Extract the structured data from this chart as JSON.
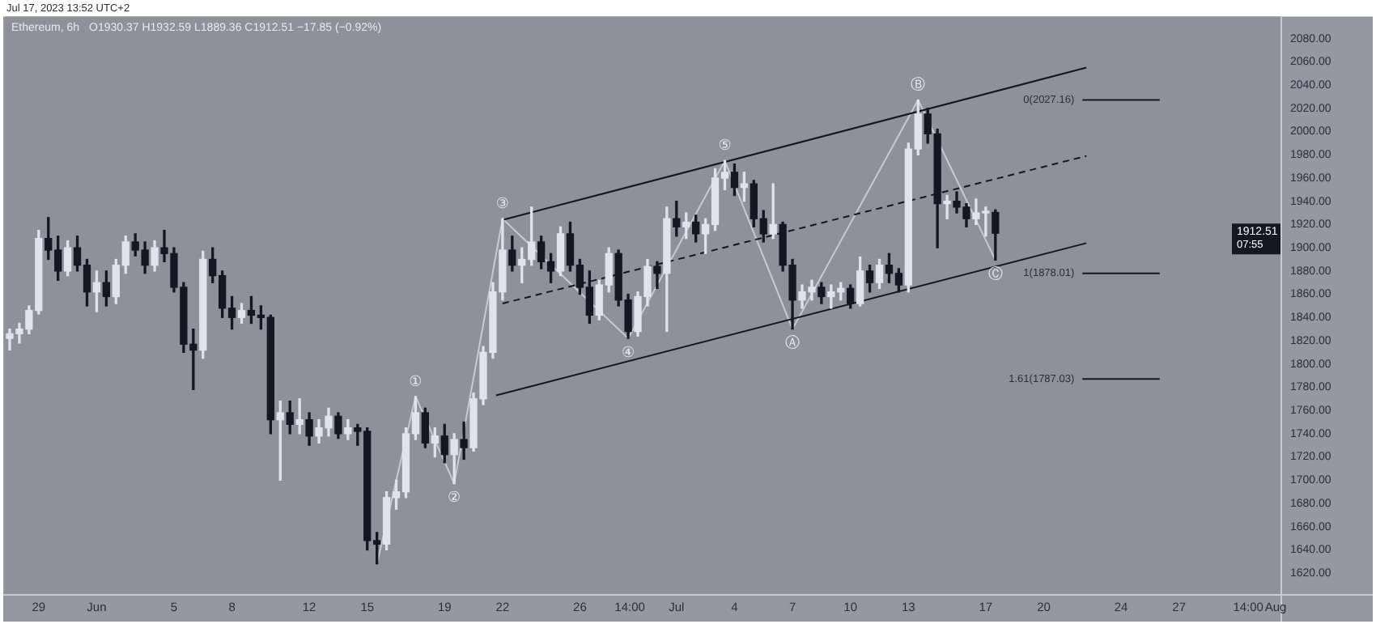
{
  "chart_data": {
    "type": "candlestick",
    "title": "Ethereum, 6h",
    "subtitle": "O1930.37 H1932.59 L1889.36 C1912.51 −17.85 (−0.92%)",
    "x": [
      "2023-05-27T12:00",
      "2023-05-28T00:00",
      "2023-05-28T12:00",
      "2023-05-29T00:00",
      "2023-05-29T12:00",
      "2023-05-30T00:00",
      "2023-05-30T12:00",
      "2023-05-31T00:00",
      "2023-05-31T12:00",
      "2023-06-01T00:00",
      "2023-06-01T12:00",
      "2023-06-02T00:00",
      "2023-06-02T12:00",
      "2023-06-03T00:00",
      "2023-06-03T12:00",
      "2023-06-04T00:00",
      "2023-06-04T12:00",
      "2023-06-05T00:00",
      "2023-06-05T12:00",
      "2023-06-06T00:00",
      "2023-06-06T12:00",
      "2023-06-07T00:00",
      "2023-06-07T12:00",
      "2023-06-08T00:00",
      "2023-06-08T12:00",
      "2023-06-09T00:00",
      "2023-06-09T12:00",
      "2023-06-10T00:00",
      "2023-06-10T12:00",
      "2023-06-11T00:00",
      "2023-06-11T12:00",
      "2023-06-12T00:00",
      "2023-06-12T12:00",
      "2023-06-13T00:00",
      "2023-06-13T12:00",
      "2023-06-14T00:00",
      "2023-06-14T12:00",
      "2023-06-15T00:00",
      "2023-06-15T12:00",
      "2023-06-16T00:00",
      "2023-06-16T12:00",
      "2023-06-17T00:00",
      "2023-06-17T12:00",
      "2023-06-18T00:00",
      "2023-06-18T12:00",
      "2023-06-19T00:00",
      "2023-06-19T12:00",
      "2023-06-20T00:00",
      "2023-06-20T12:00",
      "2023-06-21T00:00",
      "2023-06-21T12:00",
      "2023-06-22T00:00",
      "2023-06-22T12:00",
      "2023-06-23T00:00",
      "2023-06-23T12:00",
      "2023-06-24T00:00",
      "2023-06-24T12:00",
      "2023-06-25T00:00",
      "2023-06-25T12:00",
      "2023-06-26T00:00",
      "2023-06-26T12:00",
      "2023-06-27T00:00",
      "2023-06-27T12:00",
      "2023-06-28T00:00",
      "2023-06-28T12:00",
      "2023-06-29T00:00",
      "2023-06-29T12:00",
      "2023-06-30T00:00",
      "2023-06-30T12:00",
      "2023-07-01T00:00",
      "2023-07-01T12:00",
      "2023-07-02T00:00",
      "2023-07-02T12:00",
      "2023-07-03T00:00",
      "2023-07-03T12:00",
      "2023-07-04T00:00",
      "2023-07-04T12:00",
      "2023-07-05T00:00",
      "2023-07-05T12:00",
      "2023-07-06T00:00",
      "2023-07-06T12:00",
      "2023-07-07T00:00",
      "2023-07-07T12:00",
      "2023-07-08T00:00",
      "2023-07-08T12:00",
      "2023-07-09T00:00",
      "2023-07-09T12:00",
      "2023-07-10T00:00",
      "2023-07-10T12:00",
      "2023-07-11T00:00",
      "2023-07-11T12:00",
      "2023-07-12T00:00",
      "2023-07-12T12:00",
      "2023-07-13T00:00",
      "2023-07-13T12:00",
      "2023-07-14T00:00",
      "2023-07-14T12:00",
      "2023-07-15T00:00",
      "2023-07-15T12:00",
      "2023-07-16T00:00",
      "2023-07-16T12:00",
      "2023-07-17T00:00",
      "2023-07-17T12:00"
    ],
    "ohlc": [
      [
        1822,
        1830,
        1812,
        1826
      ],
      [
        1826,
        1835,
        1818,
        1830
      ],
      [
        1830,
        1850,
        1826,
        1846
      ],
      [
        1846,
        1915,
        1843,
        1908
      ],
      [
        1908,
        1926,
        1890,
        1898
      ],
      [
        1898,
        1910,
        1872,
        1880
      ],
      [
        1880,
        1906,
        1876,
        1900
      ],
      [
        1900,
        1910,
        1880,
        1885
      ],
      [
        1885,
        1890,
        1850,
        1862
      ],
      [
        1862,
        1880,
        1845,
        1870
      ],
      [
        1870,
        1880,
        1850,
        1858
      ],
      [
        1858,
        1890,
        1852,
        1885
      ],
      [
        1885,
        1910,
        1878,
        1905
      ],
      [
        1905,
        1912,
        1893,
        1898
      ],
      [
        1898,
        1905,
        1878,
        1885
      ],
      [
        1885,
        1906,
        1880,
        1900
      ],
      [
        1900,
        1915,
        1888,
        1895
      ],
      [
        1895,
        1900,
        1862,
        1866
      ],
      [
        1866,
        1870,
        1810,
        1817
      ],
      [
        1817,
        1830,
        1778,
        1812
      ],
      [
        1812,
        1897,
        1805,
        1890
      ],
      [
        1890,
        1900,
        1870,
        1876
      ],
      [
        1876,
        1880,
        1840,
        1848
      ],
      [
        1848,
        1858,
        1830,
        1840
      ],
      [
        1840,
        1852,
        1835,
        1846
      ],
      [
        1846,
        1858,
        1835,
        1842
      ],
      [
        1842,
        1850,
        1830,
        1840
      ],
      [
        1840,
        1842,
        1740,
        1752
      ],
      [
        1752,
        1768,
        1700,
        1758
      ],
      [
        1758,
        1768,
        1740,
        1748
      ],
      [
        1748,
        1770,
        1740,
        1752
      ],
      [
        1752,
        1758,
        1730,
        1738
      ],
      [
        1738,
        1752,
        1732,
        1745
      ],
      [
        1745,
        1762,
        1738,
        1755
      ],
      [
        1755,
        1758,
        1736,
        1740
      ],
      [
        1740,
        1752,
        1735,
        1745
      ],
      [
        1745,
        1748,
        1730,
        1742
      ],
      [
        1742,
        1745,
        1640,
        1648
      ],
      [
        1648,
        1655,
        1628,
        1645
      ],
      [
        1645,
        1690,
        1640,
        1685
      ],
      [
        1685,
        1700,
        1675,
        1690
      ],
      [
        1690,
        1745,
        1685,
        1740
      ],
      [
        1740,
        1772,
        1735,
        1758
      ],
      [
        1758,
        1762,
        1728,
        1732
      ],
      [
        1732,
        1745,
        1720,
        1738
      ],
      [
        1738,
        1748,
        1715,
        1722
      ],
      [
        1722,
        1740,
        1697,
        1735
      ],
      [
        1735,
        1750,
        1718,
        1728
      ],
      [
        1728,
        1775,
        1725,
        1770
      ],
      [
        1770,
        1815,
        1765,
        1810
      ],
      [
        1810,
        1870,
        1805,
        1862
      ],
      [
        1862,
        1925,
        1855,
        1898
      ],
      [
        1898,
        1910,
        1880,
        1885
      ],
      [
        1885,
        1900,
        1870,
        1890
      ],
      [
        1890,
        1935,
        1885,
        1905
      ],
      [
        1905,
        1910,
        1882,
        1888
      ],
      [
        1888,
        1895,
        1870,
        1880
      ],
      [
        1880,
        1918,
        1876,
        1912
      ],
      [
        1912,
        1922,
        1880,
        1885
      ],
      [
        1885,
        1890,
        1860,
        1866
      ],
      [
        1866,
        1880,
        1835,
        1842
      ],
      [
        1842,
        1872,
        1838,
        1868
      ],
      [
        1868,
        1900,
        1862,
        1895
      ],
      [
        1895,
        1898,
        1850,
        1855
      ],
      [
        1855,
        1860,
        1822,
        1828
      ],
      [
        1828,
        1862,
        1824,
        1858
      ],
      [
        1858,
        1890,
        1850,
        1884
      ],
      [
        1884,
        1888,
        1865,
        1878
      ],
      [
        1878,
        1935,
        1828,
        1925
      ],
      [
        1925,
        1940,
        1910,
        1918
      ],
      [
        1918,
        1930,
        1908,
        1922
      ],
      [
        1922,
        1928,
        1905,
        1912
      ],
      [
        1912,
        1925,
        1895,
        1920
      ],
      [
        1920,
        1968,
        1915,
        1960
      ],
      [
        1960,
        1975,
        1950,
        1965
      ],
      [
        1965,
        1972,
        1945,
        1952
      ],
      [
        1952,
        1965,
        1940,
        1955
      ],
      [
        1955,
        1958,
        1918,
        1925
      ],
      [
        1925,
        1932,
        1905,
        1912
      ],
      [
        1912,
        1955,
        1908,
        1920
      ],
      [
        1920,
        1922,
        1880,
        1885
      ],
      [
        1885,
        1890,
        1830,
        1855
      ],
      [
        1855,
        1868,
        1848,
        1862
      ],
      [
        1862,
        1872,
        1855,
        1866
      ],
      [
        1866,
        1870,
        1852,
        1858
      ],
      [
        1858,
        1868,
        1848,
        1862
      ],
      [
        1862,
        1870,
        1855,
        1865
      ],
      [
        1865,
        1868,
        1848,
        1852
      ],
      [
        1852,
        1892,
        1850,
        1880
      ],
      [
        1880,
        1885,
        1862,
        1870
      ],
      [
        1870,
        1890,
        1865,
        1885
      ],
      [
        1885,
        1895,
        1870,
        1878
      ],
      [
        1878,
        1882,
        1862,
        1868
      ],
      [
        1868,
        1990,
        1862,
        1985
      ],
      [
        1985,
        2027.16,
        1980,
        2015
      ],
      [
        2015,
        2020,
        1990,
        1998
      ],
      [
        1998,
        2002,
        1900,
        1938
      ],
      [
        1938,
        1945,
        1925,
        1940
      ],
      [
        1940,
        1948,
        1930,
        1935
      ],
      [
        1935,
        1938,
        1918,
        1925
      ],
      [
        1925,
        1942,
        1920,
        1930
      ],
      [
        1930,
        1935,
        1910,
        1930.37
      ],
      [
        1930.37,
        1932.59,
        1889.36,
        1912.51
      ]
    ],
    "series": [
      {
        "type": "line",
        "color": "#131722",
        "x": [
          "2023-06-22T00:00",
          "2023-07-22T05:00"
        ],
        "values": [
          1924,
          2055
        ]
      },
      {
        "type": "line",
        "color": "#131722",
        "line_style": "dashed",
        "x": [
          "2023-06-22T00:00",
          "2023-07-22T05:00"
        ],
        "values": [
          1852,
          1979
        ]
      },
      {
        "type": "line",
        "color": "#131722",
        "x": [
          "2023-06-21T16:00",
          "2023-07-22T05:00"
        ],
        "values": [
          1773,
          1904
        ]
      },
      {
        "type": "line",
        "color": "#c8cad0",
        "x": [
          "2023-06-15T12:00",
          "2023-06-17T12:00",
          "2023-06-19T12:00",
          "2023-06-22T00:00",
          "2023-06-28T12:00",
          "2023-07-03T12:00",
          "2023-07-07T00:00",
          "2023-07-13T12:00",
          "2023-07-17T12:00"
        ],
        "values": [
          1628,
          1772,
          1697,
          1925,
          1822,
          1975,
          1830,
          2027.16,
          1889.36
        ]
      },
      {
        "type": "line",
        "color": "#131722",
        "x": [
          "2023-07-22T00:00",
          "2023-07-26T00:00"
        ],
        "values": [
          2027.16,
          2027.16
        ]
      },
      {
        "type": "line",
        "color": "#131722",
        "x": [
          "2023-07-22T00:00",
          "2023-07-26T00:00"
        ],
        "values": [
          1878.01,
          1878.01
        ]
      },
      {
        "type": "line",
        "color": "#131722",
        "x": [
          "2023-07-22T00:00",
          "2023-07-26T00:00"
        ],
        "values": [
          1787.03,
          1787.03
        ]
      }
    ],
    "xlim": [
      "2023-05-27T06:00",
      "2023-08-01T06:00"
    ],
    "xticks": [
      {
        "value": "2023-05-29",
        "label": "29"
      },
      {
        "value": "2023-06-01",
        "label": "Jun"
      },
      {
        "value": "2023-06-05",
        "label": "5"
      },
      {
        "value": "2023-06-08",
        "label": "8"
      },
      {
        "value": "2023-06-12",
        "label": "12"
      },
      {
        "value": "2023-06-15",
        "label": "15"
      },
      {
        "value": "2023-06-19",
        "label": "19"
      },
      {
        "value": "2023-06-22",
        "label": "22"
      },
      {
        "value": "2023-06-26",
        "label": "26"
      },
      {
        "value": "2023-06-28T14:00",
        "label": "14:00"
      },
      {
        "value": "2023-07-01",
        "label": "Jul"
      },
      {
        "value": "2023-07-04",
        "label": "4"
      },
      {
        "value": "2023-07-07",
        "label": "7"
      },
      {
        "value": "2023-07-10",
        "label": "10"
      },
      {
        "value": "2023-07-13",
        "label": "13"
      },
      {
        "value": "2023-07-17",
        "label": "17"
      },
      {
        "value": "2023-07-20",
        "label": "20"
      },
      {
        "value": "2023-07-24",
        "label": "24"
      },
      {
        "value": "2023-07-27",
        "label": "27"
      },
      {
        "value": "2023-07-30T14:00",
        "label": "14:00"
      },
      {
        "value": "2023-08-01",
        "label": "Aug"
      }
    ],
    "ylim": [
      1602,
      2099
    ],
    "yticks": [
      {
        "value": 1620,
        "label": "1620.00"
      },
      {
        "value": 1640,
        "label": "1640.00"
      },
      {
        "value": 1660,
        "label": "1660.00"
      },
      {
        "value": 1680,
        "label": "1680.00"
      },
      {
        "value": 1700,
        "label": "1700.00"
      },
      {
        "value": 1720,
        "label": "1720.00"
      },
      {
        "value": 1740,
        "label": "1740.00"
      },
      {
        "value": 1760,
        "label": "1760.00"
      },
      {
        "value": 1780,
        "label": "1780.00"
      },
      {
        "value": 1800,
        "label": "1800.00"
      },
      {
        "value": 1820,
        "label": "1820.00"
      },
      {
        "value": 1840,
        "label": "1840.00"
      },
      {
        "value": 1860,
        "label": "1860.00"
      },
      {
        "value": 1880,
        "label": "1880.00"
      },
      {
        "value": 1900,
        "label": "1900.00"
      },
      {
        "value": 1920,
        "label": "1920.00"
      },
      {
        "value": 1940,
        "label": "1940.00"
      },
      {
        "value": 1960,
        "label": "1960.00"
      },
      {
        "value": 1980,
        "label": "1980.00"
      },
      {
        "value": 2000,
        "label": "2000.00"
      },
      {
        "value": 2020,
        "label": "2020.00"
      },
      {
        "value": 2040,
        "label": "2040.00"
      },
      {
        "value": 2060,
        "label": "2060.00"
      },
      {
        "value": 2080,
        "label": "2080.00"
      }
    ],
    "annotations": [
      "Jul 17, 2023 13:52 UTC+2",
      "1912.51",
      "07:55",
      {
        "text": "①",
        "x": "2023-06-17T12:00",
        "y": 1772
      },
      {
        "text": "②",
        "x": "2023-06-19T12:00",
        "y": 1697
      },
      {
        "text": "③",
        "x": "2023-06-22T00:00",
        "y": 1925
      },
      {
        "text": "④",
        "x": "2023-06-28T12:00",
        "y": 1822
      },
      {
        "text": "⑤",
        "x": "2023-07-03T12:00",
        "y": 1975
      },
      {
        "text": "Ⓐ",
        "x": "2023-07-07T00:00",
        "y": 1830
      },
      {
        "text": "Ⓑ",
        "x": "2023-07-13T12:00",
        "y": 2027.16
      },
      {
        "text": "Ⓒ",
        "x": "2023-07-17T12:00",
        "y": 1889.36
      },
      {
        "text": "0(2027.16)",
        "x": "2023-07-22T00:00",
        "y": 2027.16
      },
      {
        "text": "1(1878.01)",
        "x": "2023-07-22T00:00",
        "y": 1878.01
      },
      {
        "text": "1.61(1787.03)",
        "x": "2023-07-22T00:00",
        "y": 1787.03
      }
    ]
  }
}
